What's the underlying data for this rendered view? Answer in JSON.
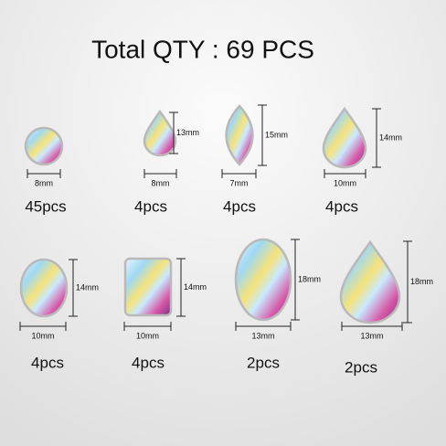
{
  "title": "Total QTY : 69 PCS",
  "items": [
    {
      "width": "8mm",
      "count": "45pcs"
    },
    {
      "width": "8mm",
      "height": "13mm",
      "count": "4pcs"
    },
    {
      "width": "7mm",
      "height": "15mm",
      "count": "4pcs"
    },
    {
      "width": "10mm",
      "height": "14mm",
      "count": "4pcs"
    },
    {
      "width": "10mm",
      "height": "14mm",
      "count": "4pcs"
    },
    {
      "width": "10mm",
      "height": "14mm",
      "count": "4pcs"
    },
    {
      "width": "13mm",
      "height": "18mm",
      "count": "2pcs"
    },
    {
      "width": "13mm",
      "height": "18mm",
      "count": "2pcs"
    }
  ]
}
